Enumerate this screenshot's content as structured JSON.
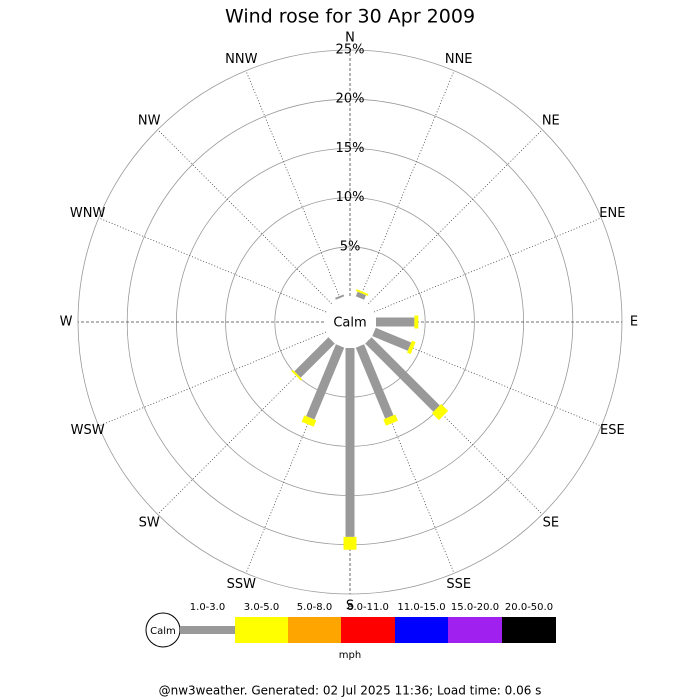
{
  "chart_data": {
    "type": "windrose",
    "title": "Wind rose for 30 Apr 2009",
    "categories": [
      "N",
      "NNE",
      "NE",
      "ENE",
      "E",
      "ESE",
      "SE",
      "SSE",
      "S",
      "SSW",
      "SW",
      "WSW",
      "W",
      "WNW",
      "NW",
      "NNW"
    ],
    "calm_label": "Calm",
    "rlim": [
      0,
      25
    ],
    "rticks": [
      {
        "value": 5,
        "label": "5%"
      },
      {
        "value": 10,
        "label": "10%"
      },
      {
        "value": 15,
        "label": "15%"
      },
      {
        "value": 20,
        "label": "20%"
      },
      {
        "value": 25,
        "label": "25%"
      }
    ],
    "series": [
      {
        "name": "1.0-3.0",
        "color": "#999999",
        "values": [
          0,
          0.5,
          0,
          0,
          3.9,
          3.9,
          9.8,
          7.8,
          19.2,
          7.9,
          4.9,
          0,
          0,
          0,
          0,
          0.2
        ]
      },
      {
        "name": "3.0-5.0",
        "color": "#ffff00",
        "values": [
          0,
          0.2,
          0,
          0,
          0.4,
          0.4,
          1.0,
          0.7,
          1.3,
          0.7,
          0.2,
          0,
          0,
          0,
          0,
          0
        ]
      },
      {
        "name": "5.0-8.0",
        "color": "#ffa500",
        "values": [
          0,
          0,
          0,
          0,
          0,
          0,
          0,
          0,
          0,
          0,
          0,
          0,
          0,
          0,
          0,
          0
        ]
      },
      {
        "name": "8.0-11.0",
        "color": "#ff0000",
        "values": [
          0,
          0,
          0,
          0,
          0,
          0,
          0,
          0,
          0,
          0,
          0,
          0,
          0,
          0,
          0,
          0
        ]
      },
      {
        "name": "11.0-15.0",
        "color": "#0000ff",
        "values": [
          0,
          0,
          0,
          0,
          0,
          0,
          0,
          0,
          0,
          0,
          0,
          0,
          0,
          0,
          0,
          0
        ]
      },
      {
        "name": "15.0-20.0",
        "color": "#a020f0",
        "values": [
          0,
          0,
          0,
          0,
          0,
          0,
          0,
          0,
          0,
          0,
          0,
          0,
          0,
          0,
          0,
          0
        ]
      },
      {
        "name": "20.0-50.0",
        "color": "#000000",
        "values": [
          0,
          0,
          0,
          0,
          0,
          0,
          0,
          0,
          0,
          0,
          0,
          0,
          0,
          0,
          0,
          0
        ]
      }
    ],
    "legend_unit": "mph",
    "footer": "@nw3weather. Generated: 02 Jul 2025 11:36; Load time: 0.06 s"
  }
}
